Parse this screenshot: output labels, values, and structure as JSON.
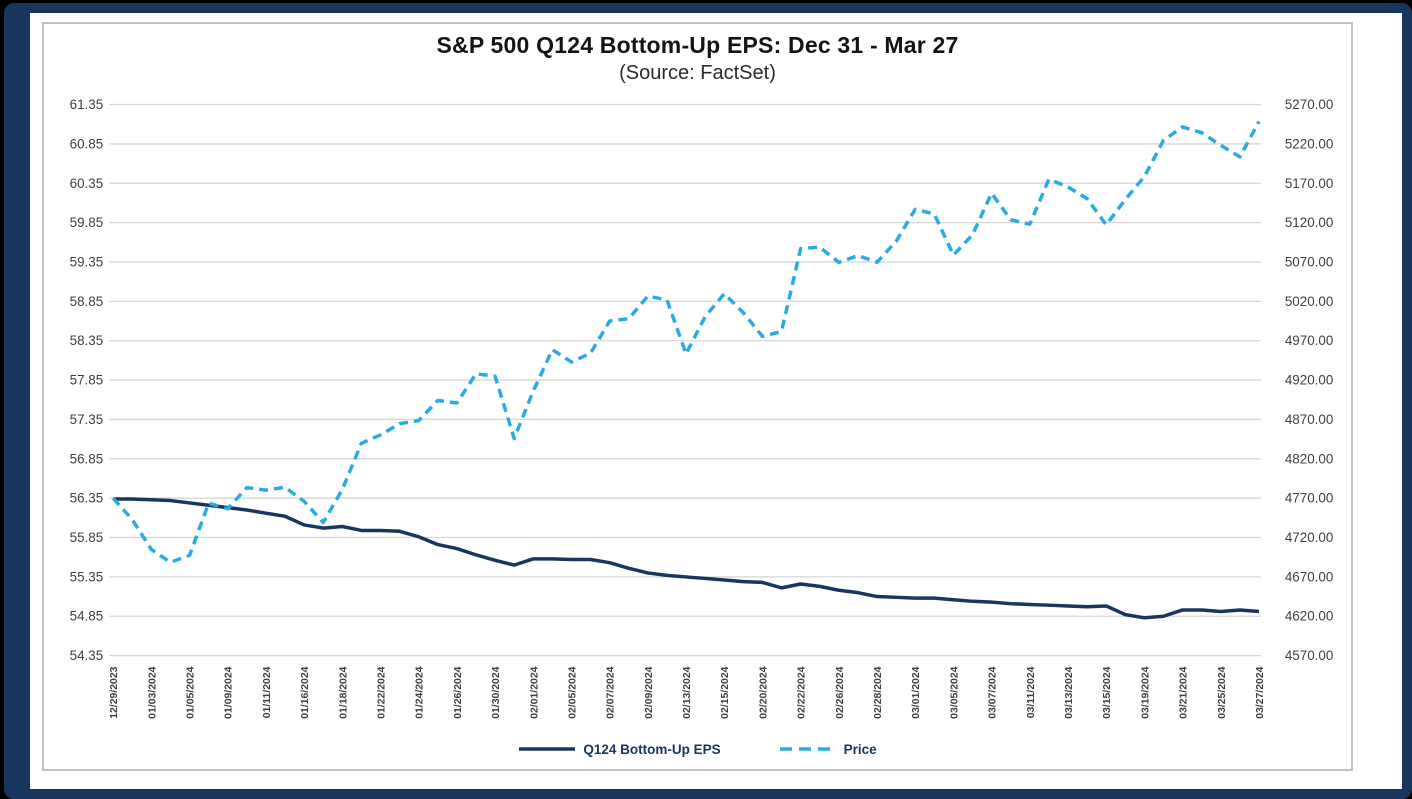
{
  "title": "S&P 500 Q124 Bottom-Up EPS: Dec 31 - Mar 27",
  "subtitle": "(Source: FactSet)",
  "legend": {
    "eps_label": "Q124 Bottom-Up EPS",
    "price_label": "Price"
  },
  "colors": {
    "page_bg": "#000000",
    "frame": "#17375e",
    "chart_bg": "#ffffff",
    "chart_border": "#c2c2c2",
    "gridline": "#d6d6d6",
    "axis_text": "#404040",
    "eps_line": "#17375e",
    "price_line": "#29abe2"
  },
  "chart_data": {
    "type": "line",
    "title": "S&P 500 Q124 Bottom-Up EPS: Dec 31 - Mar 27",
    "subtitle": "(Source: FactSet)",
    "grid": "horizontal",
    "legend_position": "bottom",
    "x": [
      "12/29/2023",
      "01/02/2024",
      "01/03/2024",
      "01/04/2024",
      "01/05/2024",
      "01/08/2024",
      "01/09/2024",
      "01/10/2024",
      "01/11/2024",
      "01/12/2024",
      "01/16/2024",
      "01/17/2024",
      "01/18/2024",
      "01/19/2024",
      "01/22/2024",
      "01/23/2024",
      "01/24/2024",
      "01/25/2024",
      "01/26/2024",
      "01/29/2024",
      "01/30/2024",
      "01/31/2024",
      "02/01/2024",
      "02/02/2024",
      "02/05/2024",
      "02/06/2024",
      "02/07/2024",
      "02/08/2024",
      "02/09/2024",
      "02/12/2024",
      "02/13/2024",
      "02/14/2024",
      "02/15/2024",
      "02/16/2024",
      "02/20/2024",
      "02/21/2024",
      "02/22/2024",
      "02/23/2024",
      "02/26/2024",
      "02/27/2024",
      "02/28/2024",
      "02/29/2024",
      "03/01/2024",
      "03/04/2024",
      "03/05/2024",
      "03/06/2024",
      "03/07/2024",
      "03/08/2024",
      "03/11/2024",
      "03/12/2024",
      "03/13/2024",
      "03/14/2024",
      "03/15/2024",
      "03/18/2024",
      "03/19/2024",
      "03/20/2024",
      "03/21/2024",
      "03/22/2024",
      "03/25/2024",
      "03/26/2024",
      "03/27/2024"
    ],
    "x_tick_labels": [
      "12/29/2023",
      "01/03/2024",
      "01/05/2024",
      "01/09/2024",
      "01/11/2024",
      "01/16/2024",
      "01/18/2024",
      "01/22/2024",
      "01/24/2024",
      "01/26/2024",
      "01/30/2024",
      "02/01/2024",
      "02/05/2024",
      "02/07/2024",
      "02/09/2024",
      "02/13/2024",
      "02/15/2024",
      "02/20/2024",
      "02/22/2024",
      "02/26/2024",
      "02/28/2024",
      "03/01/2024",
      "03/05/2024",
      "03/07/2024",
      "03/11/2024",
      "03/13/2024",
      "03/15/2024",
      "03/19/2024",
      "03/21/2024",
      "03/25/2024",
      "03/27/2024"
    ],
    "x_tick_every": 2,
    "left_axis": {
      "min": 54.35,
      "max": 61.35,
      "step": 0.5,
      "ticks": [
        "61.35",
        "60.85",
        "60.35",
        "59.85",
        "59.35",
        "58.85",
        "58.35",
        "57.85",
        "57.35",
        "56.85",
        "56.35",
        "55.85",
        "55.35",
        "54.85",
        "54.35"
      ]
    },
    "right_axis": {
      "min": 4570.0,
      "max": 5270.0,
      "step": 50.0,
      "ticks": [
        "5270.00",
        "5220.00",
        "5170.00",
        "5120.00",
        "5070.00",
        "5020.00",
        "4970.00",
        "4920.00",
        "4870.00",
        "4820.00",
        "4770.00",
        "4720.00",
        "4670.00",
        "4620.00",
        "4570.00"
      ]
    },
    "series": [
      {
        "name": "Q124 Bottom-Up EPS",
        "axis": "left",
        "style": "solid",
        "color": "#17375e",
        "values": [
          56.34,
          56.34,
          56.33,
          56.32,
          56.29,
          56.26,
          56.23,
          56.2,
          56.16,
          56.12,
          56.01,
          55.97,
          55.99,
          55.94,
          55.94,
          55.93,
          55.86,
          55.76,
          55.71,
          55.63,
          55.56,
          55.5,
          55.58,
          55.58,
          55.57,
          55.57,
          55.53,
          55.46,
          55.4,
          55.37,
          55.35,
          55.33,
          55.31,
          55.29,
          55.28,
          55.21,
          55.26,
          55.23,
          55.18,
          55.15,
          55.1,
          55.09,
          55.08,
          55.08,
          55.06,
          55.04,
          55.03,
          55.01,
          55.0,
          54.99,
          54.98,
          54.97,
          54.98,
          54.87,
          54.83,
          54.85,
          54.93,
          54.93,
          54.91,
          54.93,
          54.91
        ]
      },
      {
        "name": "Price",
        "axis": "right",
        "style": "dashed",
        "color": "#29abe2",
        "values": [
          4769.83,
          4742.83,
          4704.81,
          4688.68,
          4697.24,
          4763.54,
          4756.5,
          4783.45,
          4780.24,
          4783.83,
          4765.98,
          4739.21,
          4780.94,
          4839.81,
          4850.43,
          4864.6,
          4868.55,
          4894.16,
          4890.97,
          4927.93,
          4924.97,
          4845.65,
          4906.19,
          4958.61,
          4942.81,
          4954.23,
          4995.06,
          4997.91,
          5026.61,
          5021.84,
          4953.17,
          5000.62,
          5029.73,
          5005.57,
          4975.51,
          4981.8,
          5087.03,
          5088.8,
          5069.53,
          5078.18,
          5069.76,
          5096.27,
          5137.08,
          5130.95,
          5078.65,
          5104.76,
          5157.36,
          5123.69,
          5117.94,
          5175.27,
          5165.31,
          5150.48,
          5117.09,
          5149.42,
          5178.51,
          5224.62,
          5241.53,
          5234.18,
          5218.19,
          5203.58,
          5248.49
        ]
      }
    ]
  }
}
